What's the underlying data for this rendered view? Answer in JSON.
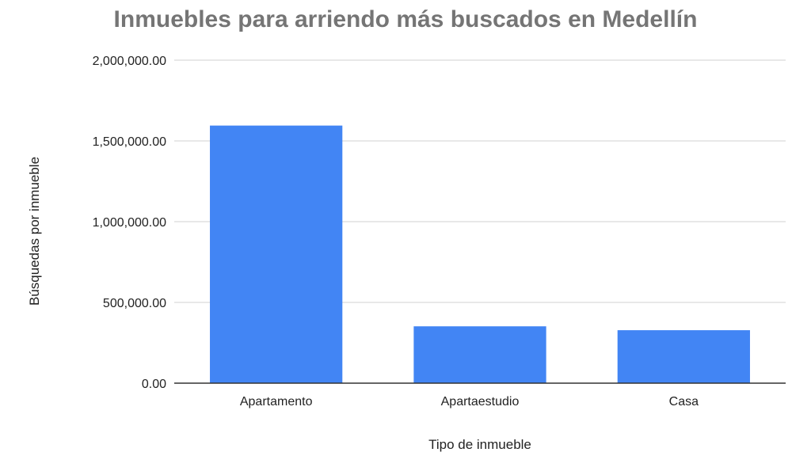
{
  "chart_data": {
    "type": "bar",
    "title": "Inmuebles para arriendo más buscados en Medellín",
    "xlabel": "Tipo de inmueble",
    "ylabel": "Búsquedas por inmueble",
    "categories": [
      "Apartamento",
      "Apartaestudio",
      "Casa"
    ],
    "values": [
      1595000,
      352000,
      328000
    ],
    "ylim": [
      0,
      2000000
    ],
    "yticks": [
      0,
      500000,
      1000000,
      1500000,
      2000000
    ],
    "ytick_labels": [
      "0.00",
      "500,000.00",
      "1,000,000.00",
      "1,500,000.00",
      "2,000,000.00"
    ],
    "bar_color": "#4285f4",
    "grid": true,
    "legend": "none"
  }
}
